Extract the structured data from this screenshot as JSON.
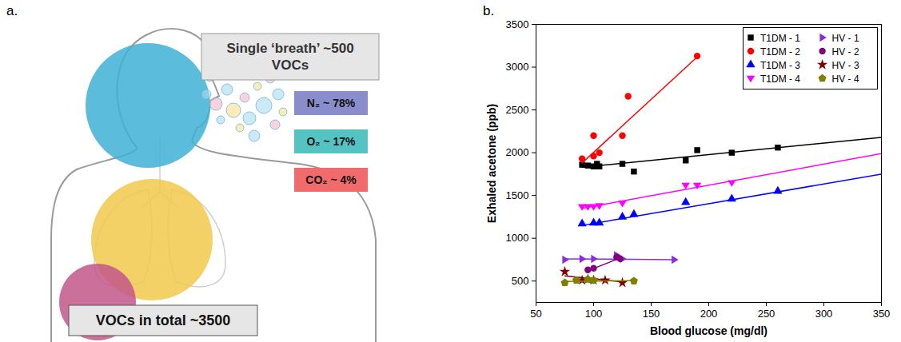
{
  "diagram": {
    "panel_label": "a.",
    "breath_box": "Single ‘breath’ ~500 VOCs",
    "gases": [
      {
        "label": "N₂ ~ 78%",
        "color": "#8a8dcc"
      },
      {
        "label": "O₂ ~ 17%",
        "color": "#56c3c3"
      },
      {
        "label": "CO₂ ~ 4%",
        "color": "#f06b6b"
      }
    ],
    "total_box": "VOCs in total ~3500"
  },
  "chart_data": {
    "type": "scatter",
    "panel_label": "b.",
    "x_label": "Blood glucose (mg/dl)",
    "y_label": "Exhaled acetone (ppb)",
    "xlim": [
      50,
      350
    ],
    "xticks": [
      50,
      100,
      150,
      200,
      250,
      300,
      350
    ],
    "ylim": [
      250,
      3500
    ],
    "yticks": [
      500,
      1000,
      1500,
      2000,
      2500,
      3000,
      3500
    ],
    "grid": false,
    "legend": "top-right",
    "series": [
      {
        "name": "T1DM - 1",
        "color": "#000000",
        "marker": "square",
        "x": [
          90,
          95,
          100,
          103,
          105,
          125,
          135,
          180,
          190,
          220,
          260
        ],
        "values": [
          1860,
          1850,
          1840,
          1870,
          1840,
          1870,
          1780,
          1910,
          2030,
          2000,
          2060
        ],
        "fit": {
          "x": [
            90,
            350
          ],
          "values": [
            1830,
            2180
          ]
        }
      },
      {
        "name": "T1DM - 2",
        "color": "#ff0000",
        "marker": "circle",
        "x": [
          90,
          100,
          100,
          105,
          125,
          130,
          190
        ],
        "values": [
          1930,
          1960,
          2200,
          2000,
          2200,
          2660,
          3130
        ],
        "fit": {
          "x": [
            90,
            190
          ],
          "values": [
            1880,
            3120
          ]
        }
      },
      {
        "name": "T1DM - 3",
        "color": "#0000ff",
        "marker": "triangle-up",
        "x": [
          90,
          100,
          105,
          125,
          135,
          180,
          220,
          260
        ],
        "values": [
          1170,
          1180,
          1180,
          1250,
          1280,
          1420,
          1460,
          1550
        ],
        "fit": {
          "x": [
            90,
            350
          ],
          "values": [
            1150,
            1750
          ]
        }
      },
      {
        "name": "T1DM - 4",
        "color": "#ff00ff",
        "marker": "triangle-down",
        "x": [
          90,
          95,
          100,
          105,
          125,
          180,
          190,
          220
        ],
        "values": [
          1370,
          1370,
          1370,
          1380,
          1410,
          1620,
          1620,
          1650
        ],
        "fit": {
          "x": [
            90,
            350
          ],
          "values": [
            1350,
            1990
          ]
        }
      },
      {
        "name": "HV - 1",
        "color": "#8a2be2",
        "marker": "triangle-right",
        "x": [
          75,
          90,
          100,
          120,
          125,
          170
        ],
        "values": [
          750,
          760,
          760,
          800,
          760,
          750
        ],
        "fit": {
          "x": [
            75,
            170
          ],
          "values": [
            760,
            750
          ]
        }
      },
      {
        "name": "HV - 2",
        "color": "#800080",
        "marker": "circle",
        "x": [
          95,
          100,
          120,
          123
        ],
        "values": [
          630,
          650,
          780,
          760
        ],
        "fit": {
          "x": [
            95,
            125
          ],
          "values": [
            620,
            780
          ]
        }
      },
      {
        "name": "HV - 3",
        "color": "#800000",
        "marker": "star",
        "x": [
          75,
          90,
          95,
          100,
          110,
          125
        ],
        "values": [
          610,
          510,
          520,
          510,
          510,
          480
        ],
        "fit": {
          "x": [
            75,
            125
          ],
          "values": [
            560,
            490
          ]
        }
      },
      {
        "name": "HV - 4",
        "color": "#808000",
        "marker": "pentagon",
        "x": [
          75,
          85,
          95,
          100,
          135
        ],
        "values": [
          480,
          510,
          520,
          510,
          500
        ],
        "fit": {
          "x": [
            75,
            135
          ],
          "values": [
            495,
            505
          ]
        }
      }
    ]
  }
}
